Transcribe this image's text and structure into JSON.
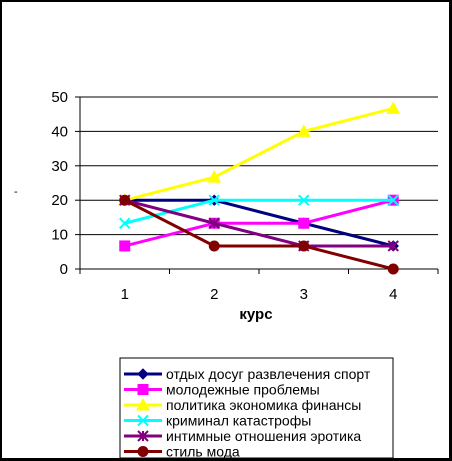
{
  "chart_data": {
    "type": "line",
    "title": "",
    "xlabel": "курс",
    "ylabel": "-",
    "categories": [
      "1",
      "2",
      "3",
      "4"
    ],
    "ylim": [
      0,
      50
    ],
    "yticks": [
      0,
      10,
      20,
      30,
      40,
      50
    ],
    "grid": "horizontal",
    "legend_position": "bottom",
    "series": [
      {
        "name": "отдых досуг развлечения спорт",
        "values": [
          20,
          20,
          13.3,
          6.7
        ],
        "color": "#000080",
        "marker": "diamond"
      },
      {
        "name": "молодежные проблемы",
        "values": [
          6.7,
          13.3,
          13.3,
          20
        ],
        "color": "#FF00FF",
        "marker": "square"
      },
      {
        "name": "политика экономика финансы",
        "values": [
          20,
          26.7,
          40,
          46.7
        ],
        "color": "#FFFF00",
        "marker": "triangle"
      },
      {
        "name": "криминал катастрофы",
        "values": [
          13.3,
          20,
          20,
          20
        ],
        "color": "#00FFFF",
        "marker": "x"
      },
      {
        "name": "интимные отношения эротика",
        "values": [
          20,
          13.3,
          6.7,
          6.7
        ],
        "color": "#800080",
        "marker": "star"
      },
      {
        "name": "стиль мода",
        "values": [
          20,
          6.7,
          6.7,
          0
        ],
        "color": "#800000",
        "marker": "circle"
      }
    ]
  }
}
